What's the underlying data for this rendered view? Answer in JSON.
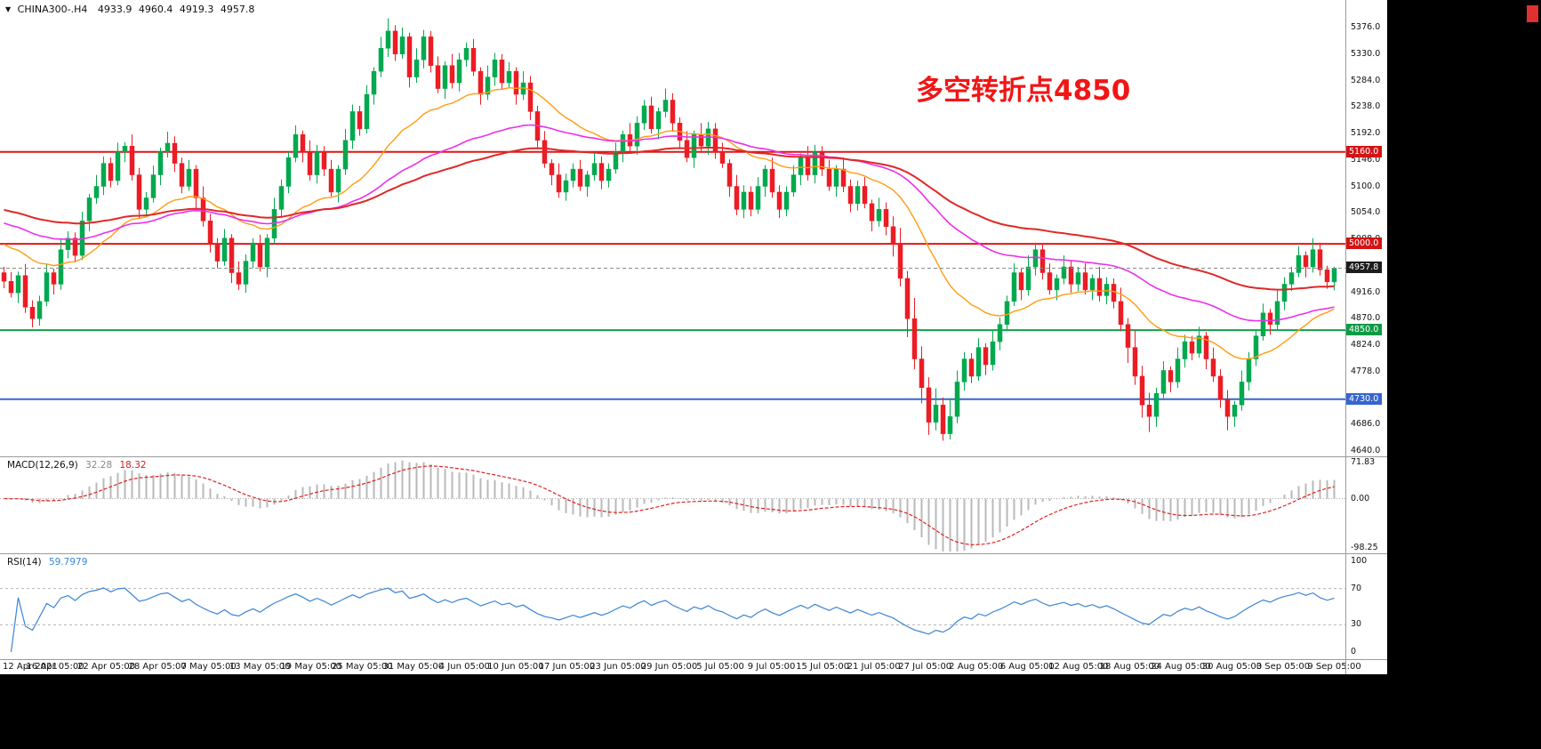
{
  "header": {
    "dropdown_icon": "▼",
    "symbol": "CHINA300-.H4",
    "open": "4933.9",
    "high": "4960.4",
    "low": "4919.3",
    "close": "4957.8"
  },
  "colors": {
    "chart_background": "#ffffff",
    "outside_background": "#000000",
    "candle_up": "#00a94f",
    "candle_down": "#ec1c24",
    "separator": "#9b9b9b",
    "scrollbar": "#e03030",
    "axis_text": "#111111"
  },
  "chart_data": [
    {
      "type": "candlestick",
      "symbol": "CHINA300-",
      "timeframe": "H4",
      "ohlc_display": {
        "open": 4933.9,
        "high": 4960.4,
        "low": 4919.3,
        "close": 4957.8
      },
      "annotation": {
        "text": "多空转折点4850",
        "color": "#f21515"
      },
      "y_axis": {
        "labels": [
          "5376.0",
          "5330.0",
          "5284.0",
          "5238.0",
          "5192.0",
          "5146.0",
          "5100.0",
          "5054.0",
          "5008.0",
          "4962.0",
          "4916.0",
          "4870.0",
          "4824.0",
          "4778.0",
          "4732.0",
          "4686.0",
          "4640.0"
        ]
      },
      "x_axis": {
        "labels": [
          "12 Apr 2021",
          "16 Apr 05:00",
          "22 Apr 05:00",
          "28 Apr 05:00",
          "7 May 05:00",
          "13 May 05:00",
          "19 May 05:00",
          "25 May 05:00",
          "31 May 05:00",
          "4 Jun 05:00",
          "10 Jun 05:00",
          "17 Jun 05:00",
          "23 Jun 05:00",
          "29 Jun 05:00",
          "5 Jul 05:00",
          "9 Jul 05:00",
          "15 Jul 05:00",
          "21 Jul 05:00",
          "27 Jul 05:00",
          "2 Aug 05:00",
          "6 Aug 05:00",
          "12 Aug 05:00",
          "18 Aug 05:00",
          "24 Aug 05:00",
          "30 Aug 05:00",
          "3 Sep 05:00",
          "9 Sep 05:00"
        ]
      },
      "levels": [
        {
          "value": 5160.0,
          "label": "5160.0",
          "style": "solid",
          "line_color": "#e01616",
          "line_width": 2,
          "badge_color": "#d41414"
        },
        {
          "value": 5000.0,
          "label": "5000.0",
          "style": "solid",
          "line_color": "#e01616",
          "line_width": 2,
          "badge_color": "#d41414"
        },
        {
          "value": 4957.8,
          "label": "4957.8",
          "style": "dashed",
          "line_color": "#8c8c8c",
          "line_width": 1,
          "badge_color": "#1c1c1c"
        },
        {
          "value": 4850.0,
          "label": "4850.0",
          "style": "solid",
          "line_color": "#13a04a",
          "line_width": 2,
          "badge_color": "#0f9a44"
        },
        {
          "value": 4730.0,
          "label": "4730.0",
          "style": "solid",
          "line_color": "#3566cf",
          "line_width": 2,
          "badge_color": "#3566cf"
        }
      ],
      "moving_averages": [
        {
          "name": "ma-fast",
          "period": 24,
          "start_value": 5005,
          "color": "#ff9c12",
          "width": 1.4
        },
        {
          "name": "ma-mid",
          "period": 55,
          "start_value": 5040,
          "color": "#ec2fec",
          "width": 1.6
        },
        {
          "name": "ma-slow",
          "period": 90,
          "start_value": 5062,
          "color": "#e02828",
          "width": 2
        }
      ],
      "candles": [
        [
          4950,
          4960,
          4923,
          4935
        ],
        [
          4935,
          4951,
          4907,
          4915
        ],
        [
          4915,
          4952,
          4897,
          4945
        ],
        [
          4945,
          4965,
          4880,
          4890
        ],
        [
          4890,
          4902,
          4855,
          4870
        ],
        [
          4870,
          4910,
          4858,
          4900
        ],
        [
          4900,
          4966,
          4892,
          4950
        ],
        [
          4950,
          4957,
          4912,
          4930
        ],
        [
          4930,
          5010,
          4920,
          4990
        ],
        [
          4990,
          5022,
          4975,
          5010
        ],
        [
          5010,
          5020,
          4968,
          4980
        ],
        [
          4980,
          5056,
          4972,
          5040
        ],
        [
          5040,
          5087,
          5022,
          5080
        ],
        [
          5080,
          5120,
          5070,
          5100
        ],
        [
          5100,
          5152,
          5085,
          5140
        ],
        [
          5140,
          5150,
          5098,
          5110
        ],
        [
          5110,
          5176,
          5102,
          5160
        ],
        [
          5160,
          5177,
          5142,
          5170
        ],
        [
          5170,
          5190,
          5110,
          5120
        ],
        [
          5120,
          5132,
          5045,
          5060
        ],
        [
          5060,
          5090,
          5048,
          5080
        ],
        [
          5080,
          5136,
          5072,
          5120
        ],
        [
          5120,
          5167,
          5102,
          5160
        ],
        [
          5160,
          5195,
          5150,
          5175
        ],
        [
          5175,
          5187,
          5125,
          5140
        ],
        [
          5140,
          5150,
          5088,
          5100
        ],
        [
          5100,
          5146,
          5092,
          5130
        ],
        [
          5130,
          5137,
          5062,
          5080
        ],
        [
          5080,
          5100,
          5030,
          5040
        ],
        [
          5040,
          5052,
          4985,
          5000
        ],
        [
          5000,
          5010,
          4958,
          4970
        ],
        [
          4970,
          5026,
          4962,
          5010
        ],
        [
          5010,
          5017,
          4932,
          4950
        ],
        [
          4950,
          4970,
          4920,
          4930
        ],
        [
          4930,
          4982,
          4915,
          4970
        ],
        [
          4970,
          5010,
          4958,
          5000
        ],
        [
          5000,
          5016,
          4952,
          4960
        ],
        [
          4960,
          5017,
          4942,
          5010
        ],
        [
          5010,
          5080,
          5000,
          5060
        ],
        [
          5060,
          5112,
          5045,
          5100
        ],
        [
          5100,
          5160,
          5088,
          5150
        ],
        [
          5150,
          5206,
          5142,
          5190
        ],
        [
          5190,
          5197,
          5142,
          5160
        ],
        [
          5160,
          5180,
          5110,
          5120
        ],
        [
          5120,
          5172,
          5105,
          5160
        ],
        [
          5160,
          5170,
          5118,
          5130
        ],
        [
          5130,
          5146,
          5082,
          5090
        ],
        [
          5090,
          5137,
          5072,
          5130
        ],
        [
          5130,
          5200,
          5120,
          5180
        ],
        [
          5180,
          5242,
          5165,
          5230
        ],
        [
          5230,
          5240,
          5188,
          5200
        ],
        [
          5200,
          5276,
          5192,
          5260
        ],
        [
          5260,
          5307,
          5242,
          5300
        ],
        [
          5300,
          5360,
          5290,
          5340
        ],
        [
          5340,
          5392,
          5325,
          5370
        ],
        [
          5370,
          5380,
          5318,
          5330
        ],
        [
          5330,
          5376,
          5322,
          5360
        ],
        [
          5360,
          5367,
          5272,
          5290
        ],
        [
          5290,
          5340,
          5280,
          5320
        ],
        [
          5320,
          5372,
          5305,
          5360
        ],
        [
          5360,
          5370,
          5298,
          5310
        ],
        [
          5310,
          5326,
          5262,
          5270
        ],
        [
          5270,
          5317,
          5252,
          5310
        ],
        [
          5310,
          5330,
          5270,
          5280
        ],
        [
          5280,
          5332,
          5265,
          5320
        ],
        [
          5320,
          5350,
          5308,
          5340
        ],
        [
          5340,
          5356,
          5292,
          5300
        ],
        [
          5300,
          5307,
          5242,
          5260
        ],
        [
          5260,
          5310,
          5250,
          5290
        ],
        [
          5290,
          5332,
          5275,
          5320
        ],
        [
          5320,
          5330,
          5268,
          5280
        ],
        [
          5280,
          5316,
          5272,
          5300
        ],
        [
          5300,
          5307,
          5242,
          5260
        ],
        [
          5260,
          5300,
          5250,
          5280
        ],
        [
          5280,
          5292,
          5215,
          5230
        ],
        [
          5230,
          5240,
          5168,
          5180
        ],
        [
          5180,
          5196,
          5132,
          5140
        ],
        [
          5140,
          5147,
          5102,
          5120
        ],
        [
          5120,
          5140,
          5080,
          5090
        ],
        [
          5090,
          5122,
          5075,
          5110
        ],
        [
          5110,
          5140,
          5098,
          5130
        ],
        [
          5130,
          5146,
          5092,
          5100
        ],
        [
          5100,
          5127,
          5082,
          5120
        ],
        [
          5120,
          5160,
          5110,
          5140
        ],
        [
          5140,
          5152,
          5095,
          5110
        ],
        [
          5110,
          5140,
          5098,
          5130
        ],
        [
          5130,
          5176,
          5122,
          5160
        ],
        [
          5160,
          5197,
          5142,
          5190
        ],
        [
          5190,
          5210,
          5160,
          5170
        ],
        [
          5170,
          5222,
          5155,
          5210
        ],
        [
          5210,
          5250,
          5198,
          5240
        ],
        [
          5240,
          5256,
          5192,
          5200
        ],
        [
          5200,
          5237,
          5182,
          5230
        ],
        [
          5230,
          5270,
          5220,
          5250
        ],
        [
          5250,
          5262,
          5195,
          5210
        ],
        [
          5210,
          5220,
          5168,
          5180
        ],
        [
          5180,
          5196,
          5142,
          5150
        ],
        [
          5150,
          5197,
          5132,
          5190
        ],
        [
          5190,
          5210,
          5160,
          5170
        ],
        [
          5170,
          5212,
          5155,
          5200
        ],
        [
          5200,
          5210,
          5148,
          5160
        ],
        [
          5160,
          5176,
          5132,
          5140
        ],
        [
          5140,
          5147,
          5082,
          5100
        ],
        [
          5100,
          5120,
          5050,
          5060
        ],
        [
          5060,
          5102,
          5045,
          5090
        ],
        [
          5090,
          5100,
          5048,
          5060
        ],
        [
          5060,
          5116,
          5052,
          5100
        ],
        [
          5100,
          5137,
          5082,
          5130
        ],
        [
          5130,
          5150,
          5080,
          5090
        ],
        [
          5090,
          5102,
          5045,
          5060
        ],
        [
          5060,
          5100,
          5048,
          5090
        ],
        [
          5090,
          5136,
          5082,
          5120
        ],
        [
          5120,
          5157,
          5102,
          5150
        ],
        [
          5150,
          5170,
          5110,
          5120
        ],
        [
          5120,
          5172,
          5105,
          5160
        ],
        [
          5160,
          5170,
          5118,
          5130
        ],
        [
          5130,
          5146,
          5092,
          5100
        ],
        [
          5100,
          5137,
          5082,
          5130
        ],
        [
          5130,
          5150,
          5090,
          5100
        ],
        [
          5100,
          5112,
          5055,
          5070
        ],
        [
          5070,
          5110,
          5058,
          5100
        ],
        [
          5100,
          5116,
          5062,
          5070
        ],
        [
          5070,
          5077,
          5022,
          5040
        ],
        [
          5040,
          5080,
          5030,
          5060
        ],
        [
          5060,
          5072,
          5015,
          5030
        ],
        [
          5030,
          5048,
          4978,
          5000
        ],
        [
          5000,
          5028,
          4926,
          4940
        ],
        [
          4940,
          4953,
          4838,
          4870
        ],
        [
          4870,
          4906,
          4782,
          4800
        ],
        [
          4800,
          4822,
          4723,
          4750
        ],
        [
          4750,
          4768,
          4668,
          4690
        ],
        [
          4690,
          4749,
          4676,
          4720
        ],
        [
          4720,
          4733,
          4658,
          4670
        ],
        [
          4670,
          4732,
          4660,
          4700
        ],
        [
          4700,
          4780,
          4688,
          4760
        ],
        [
          4760,
          4812,
          4745,
          4800
        ],
        [
          4800,
          4810,
          4758,
          4770
        ],
        [
          4770,
          4836,
          4762,
          4820
        ],
        [
          4820,
          4827,
          4772,
          4790
        ],
        [
          4790,
          4850,
          4780,
          4830
        ],
        [
          4830,
          4872,
          4815,
          4860
        ],
        [
          4860,
          4910,
          4848,
          4900
        ],
        [
          4900,
          4966,
          4892,
          4950
        ],
        [
          4950,
          4957,
          4902,
          4920
        ],
        [
          4920,
          4980,
          4910,
          4960
        ],
        [
          4960,
          5002,
          4945,
          4990
        ],
        [
          4990,
          5000,
          4938,
          4950
        ],
        [
          4950,
          4966,
          4912,
          4920
        ],
        [
          4920,
          4947,
          4902,
          4940
        ],
        [
          4940,
          4980,
          4930,
          4960
        ],
        [
          4960,
          4972,
          4915,
          4930
        ],
        [
          4930,
          4960,
          4918,
          4950
        ],
        [
          4950,
          4966,
          4912,
          4920
        ],
        [
          4920,
          4947,
          4902,
          4940
        ],
        [
          4940,
          4960,
          4900,
          4910
        ],
        [
          4910,
          4942,
          4895,
          4930
        ],
        [
          4930,
          4940,
          4888,
          4900
        ],
        [
          4900,
          4924,
          4848,
          4860
        ],
        [
          4860,
          4871,
          4793,
          4820
        ],
        [
          4820,
          4850,
          4755,
          4770
        ],
        [
          4770,
          4788,
          4698,
          4720
        ],
        [
          4720,
          4741,
          4673,
          4700
        ],
        [
          4700,
          4750,
          4682,
          4740
        ],
        [
          4740,
          4796,
          4732,
          4780
        ],
        [
          4780,
          4787,
          4742,
          4760
        ],
        [
          4760,
          4820,
          4750,
          4800
        ],
        [
          4800,
          4842,
          4785,
          4830
        ],
        [
          4830,
          4840,
          4798,
          4810
        ],
        [
          4810,
          4856,
          4802,
          4840
        ],
        [
          4840,
          4847,
          4782,
          4800
        ],
        [
          4800,
          4820,
          4760,
          4770
        ],
        [
          4770,
          4782,
          4715,
          4730
        ],
        [
          4730,
          4746,
          4676,
          4700
        ],
        [
          4700,
          4727,
          4682,
          4720
        ],
        [
          4720,
          4780,
          4710,
          4760
        ],
        [
          4760,
          4812,
          4745,
          4800
        ],
        [
          4800,
          4850,
          4788,
          4840
        ],
        [
          4840,
          4896,
          4832,
          4880
        ],
        [
          4880,
          4887,
          4842,
          4860
        ],
        [
          4860,
          4920,
          4850,
          4900
        ],
        [
          4900,
          4942,
          4885,
          4930
        ],
        [
          4930,
          4960,
          4918,
          4950
        ],
        [
          4950,
          4996,
          4942,
          4980
        ],
        [
          4980,
          4987,
          4942,
          4960
        ],
        [
          4960,
          5010,
          4950,
          4990
        ],
        [
          4990,
          5002,
          4945,
          4955
        ],
        [
          4955,
          4962,
          4922,
          4934
        ],
        [
          4933.9,
          4960.4,
          4919.3,
          4957.8
        ]
      ]
    },
    {
      "type": "line",
      "name": "MACD",
      "label": "MACD(12,26,9)",
      "value_main": "32.28",
      "value_signal": "18.32",
      "params": [
        12,
        26,
        9
      ],
      "scale_labels": [
        "71.83",
        "0.00",
        "-98.25"
      ],
      "histogram_color": "#b9b9b9",
      "signal_color": "#e02020"
    },
    {
      "type": "line",
      "name": "RSI",
      "label": "RSI(14)",
      "value": "59.7979",
      "period": 14,
      "scale_labels": [
        "100",
        "70",
        "30",
        "0"
      ],
      "levels": [
        70,
        30
      ],
      "line_color": "#3a85d4"
    }
  ]
}
